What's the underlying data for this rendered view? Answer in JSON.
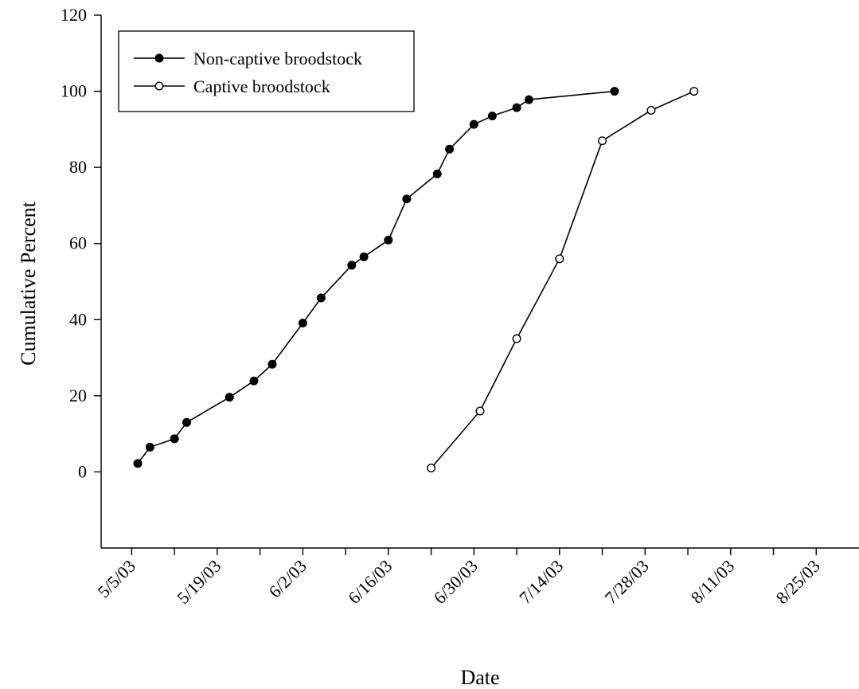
{
  "chart_data": {
    "type": "line",
    "title": "",
    "xlabel": "Date",
    "ylabel": "Cumulative Percent",
    "xlim": [
      "2003-04-30",
      "2003-09-01"
    ],
    "ylim": [
      -20,
      120
    ],
    "x_ticks": [
      "2003-05-05",
      "2003-05-12",
      "2003-05-19",
      "2003-05-26",
      "2003-06-02",
      "2003-06-09",
      "2003-06-16",
      "2003-06-23",
      "2003-06-30",
      "2003-07-07",
      "2003-07-14",
      "2003-07-21",
      "2003-07-28",
      "2003-08-04",
      "2003-08-11",
      "2003-08-18",
      "2003-08-25"
    ],
    "x_tick_labels": [
      "5/5/03",
      "5/19/03",
      "6/2/03",
      "6/16/03",
      "6/30/03",
      "7/14/03",
      "7/28/03",
      "8/11/03",
      "8/25/03"
    ],
    "x_tick_label_dates": [
      "2003-05-05",
      "2003-05-19",
      "2003-06-02",
      "2003-06-16",
      "2003-06-30",
      "2003-07-14",
      "2003-07-28",
      "2003-08-11",
      "2003-08-25"
    ],
    "y_ticks": [
      0,
      20,
      40,
      60,
      80,
      100,
      120
    ],
    "y_tick_labels": [
      "0",
      "20",
      "40",
      "60",
      "80",
      "100",
      "120"
    ],
    "grid": false,
    "legend_position": "top-left",
    "series": [
      {
        "name": "Non-captive broodstock",
        "marker": "filled-circle",
        "x": [
          "2003-05-06",
          "2003-05-08",
          "2003-05-12",
          "2003-05-14",
          "2003-05-21",
          "2003-05-25",
          "2003-05-28",
          "2003-06-02",
          "2003-06-05",
          "2003-06-10",
          "2003-06-12",
          "2003-06-16",
          "2003-06-19",
          "2003-06-24",
          "2003-06-26",
          "2003-06-30",
          "2003-07-03",
          "2003-07-07",
          "2003-07-09",
          "2003-07-23"
        ],
        "y": [
          2.2,
          6.5,
          8.7,
          13.0,
          19.6,
          23.9,
          28.3,
          39.1,
          45.7,
          54.3,
          56.5,
          60.9,
          71.7,
          78.3,
          84.8,
          91.3,
          93.5,
          95.7,
          97.8,
          100.0
        ]
      },
      {
        "name": "Captive broodstock",
        "marker": "open-circle",
        "x": [
          "2003-06-23",
          "2003-07-01",
          "2003-07-07",
          "2003-07-14",
          "2003-07-21",
          "2003-07-29",
          "2003-08-05"
        ],
        "y": [
          1.0,
          16.0,
          35.0,
          56.0,
          87.0,
          95.0,
          100.0
        ]
      }
    ]
  }
}
